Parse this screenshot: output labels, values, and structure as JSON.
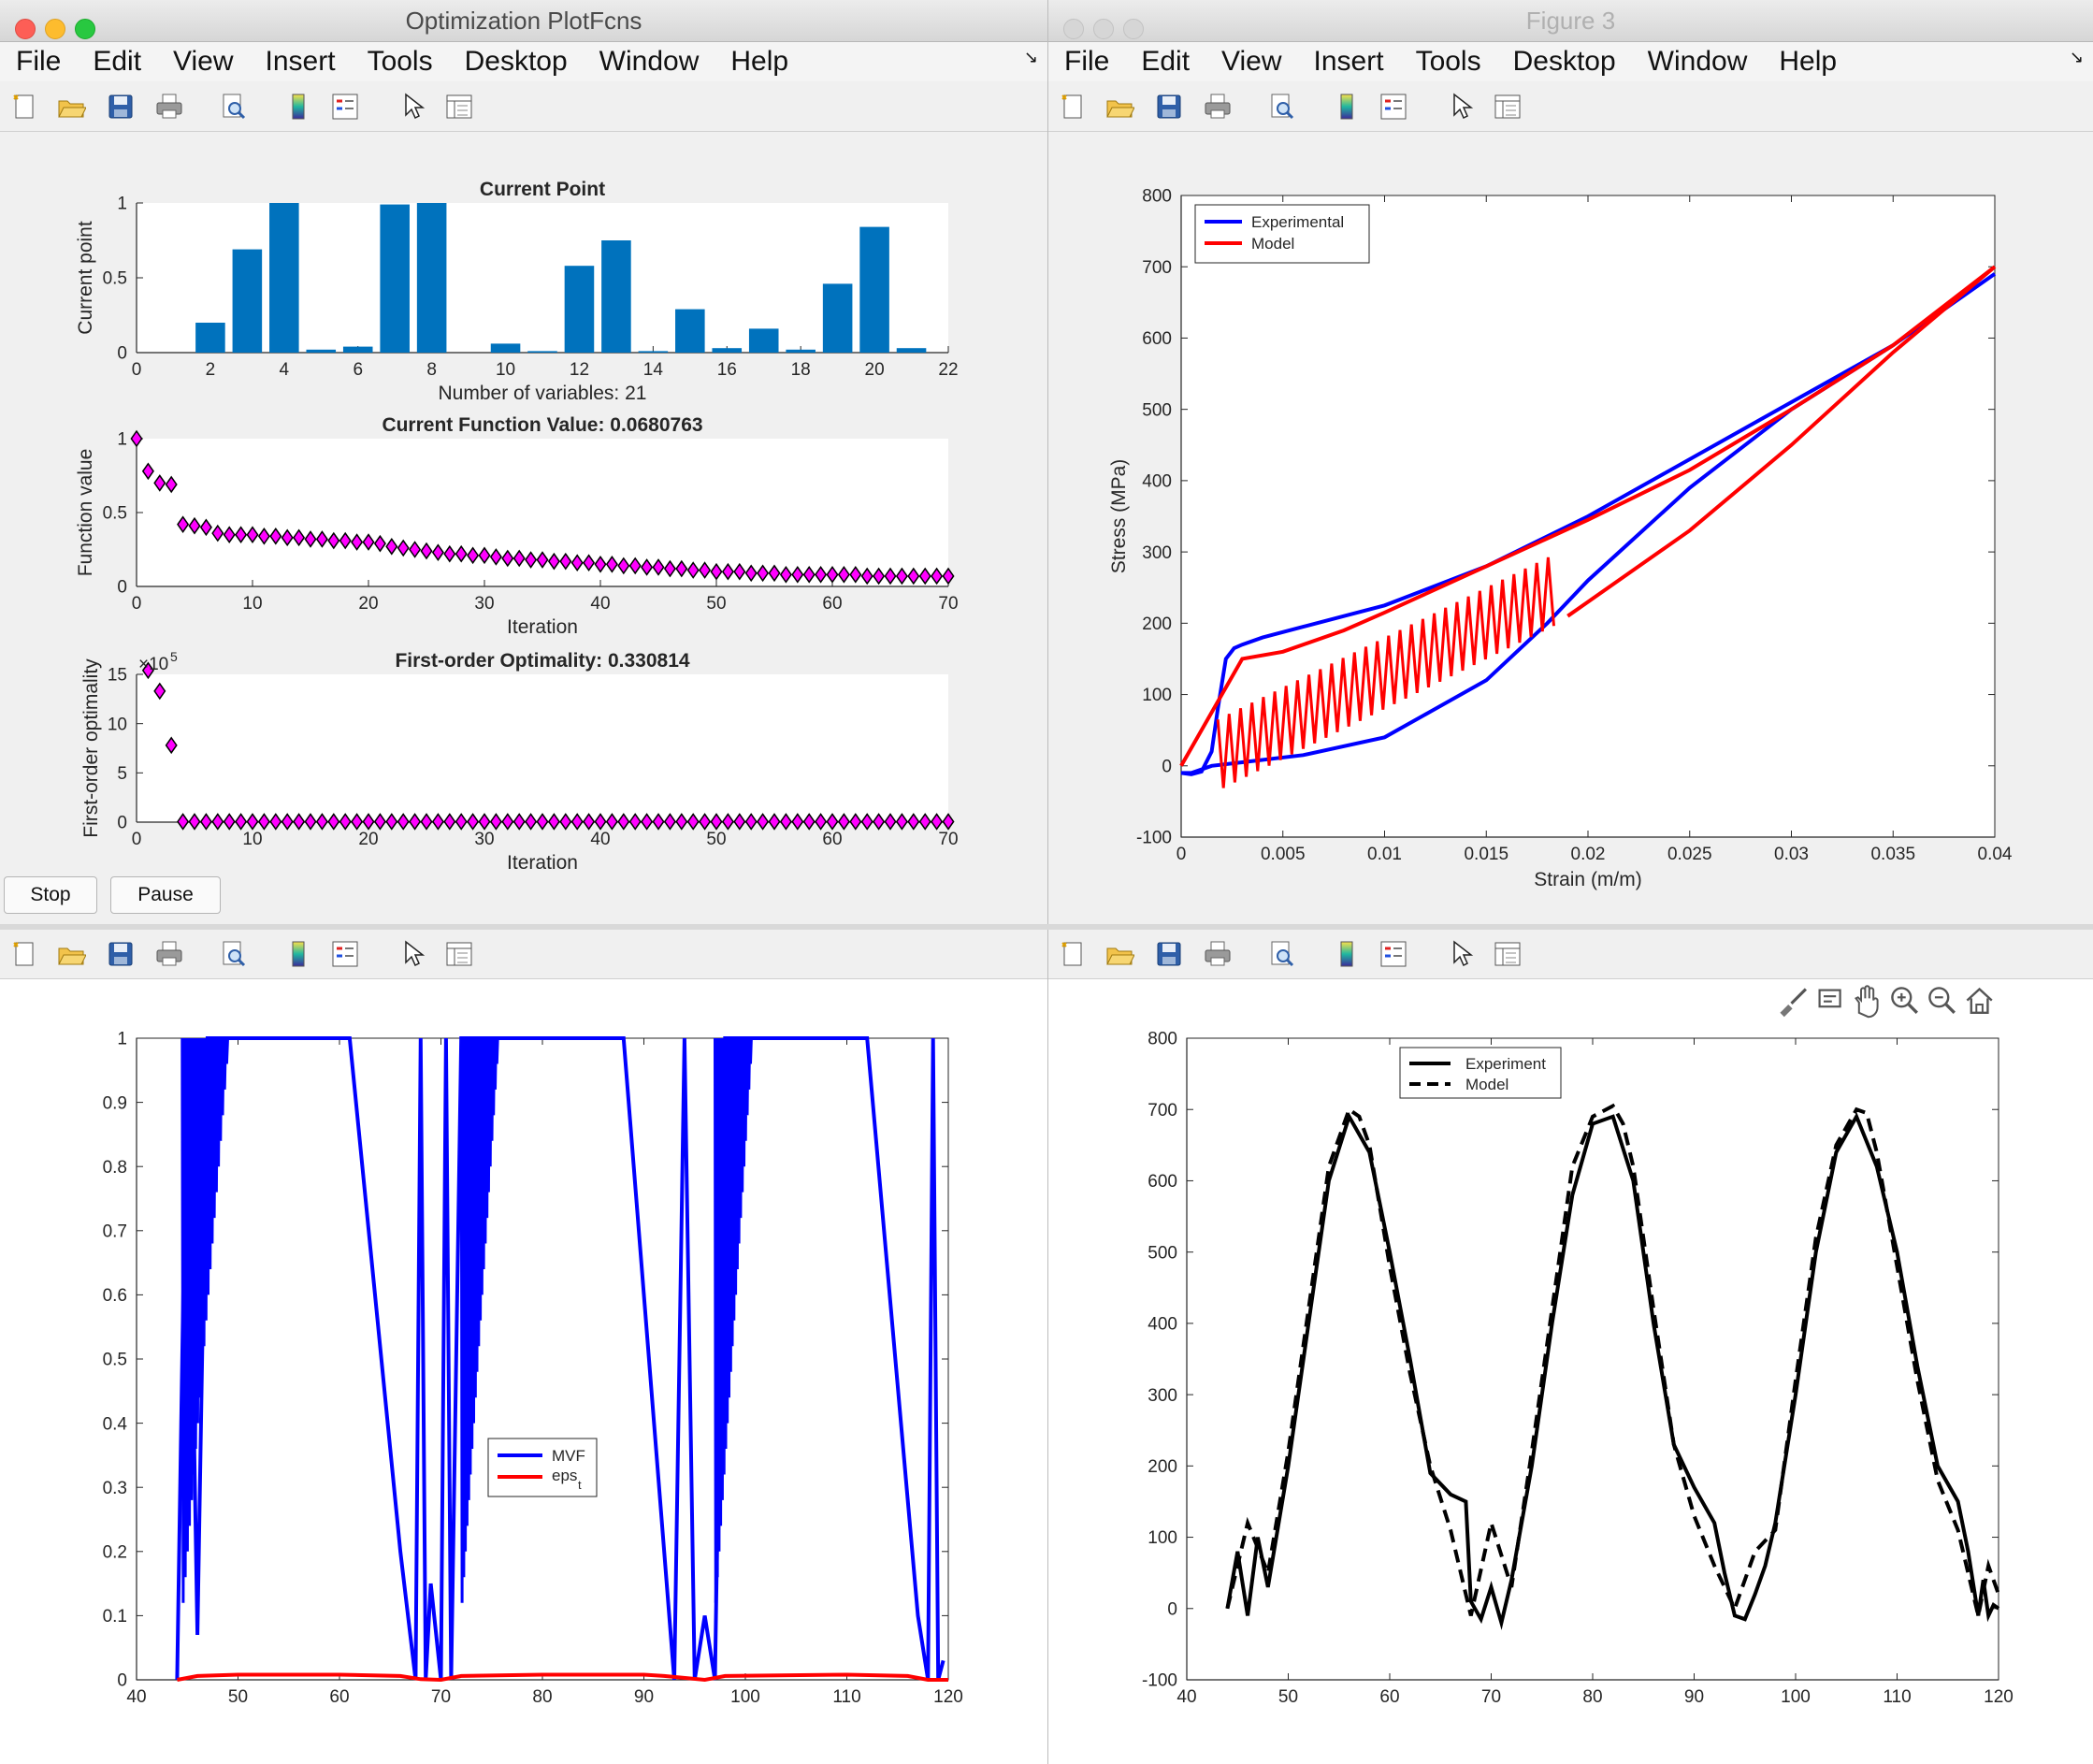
{
  "windows": {
    "top_left": {
      "title": "Optimization PlotFcns"
    },
    "top_right": {
      "title": "Figure 3"
    }
  },
  "menu": [
    "File",
    "Edit",
    "View",
    "Insert",
    "Tools",
    "Desktop",
    "Window",
    "Help"
  ],
  "toolbar_icons": [
    "new-figure-icon",
    "open-file-icon",
    "save-icon",
    "print-icon",
    "print-preview-icon",
    "colorbar-icon",
    "legend-icon",
    "edit-plot-arrow-icon",
    "property-inspector-icon"
  ],
  "axes_toolbar_icons": [
    "brush-icon",
    "data-tips-icon",
    "pan-hand-icon",
    "zoom-in-icon",
    "zoom-out-icon",
    "home-icon"
  ],
  "buttons": {
    "stop": "Stop",
    "pause": "Pause"
  },
  "colors": {
    "bar": "#0072BD",
    "marker": "#FF00FF",
    "experimental": "#0000FF",
    "model": "#FF0000"
  },
  "chart_data": [
    {
      "type": "bar",
      "title": "Current Point",
      "xlabel": "Number of variables: 21",
      "ylabel": "Current point",
      "xlim": [
        0,
        22
      ],
      "ylim": [
        0,
        1
      ],
      "xticks": [
        0,
        2,
        4,
        6,
        8,
        10,
        12,
        14,
        16,
        18,
        20,
        22
      ],
      "yticks": [
        0,
        0.5,
        1
      ],
      "categories": [
        1,
        2,
        3,
        4,
        5,
        6,
        7,
        8,
        9,
        10,
        11,
        12,
        13,
        14,
        15,
        16,
        17,
        18,
        19,
        20,
        21
      ],
      "values": [
        0,
        0.2,
        0.69,
        1.0,
        0.02,
        0.04,
        0.99,
        1.0,
        0,
        0.06,
        0.01,
        0.58,
        0.75,
        0.01,
        0.29,
        0.03,
        0.16,
        0.02,
        0.46,
        0.84,
        0.03
      ]
    },
    {
      "type": "scatter",
      "title": "Current Function Value: 0.0680763",
      "xlabel": "Iteration",
      "ylabel": "Function value",
      "xlim": [
        0,
        70
      ],
      "ylim": [
        0,
        1
      ],
      "xticks": [
        0,
        10,
        20,
        30,
        40,
        50,
        60,
        70
      ],
      "yticks": [
        0,
        0.5,
        1
      ],
      "x": [
        0,
        1,
        2,
        3,
        4,
        5,
        6,
        7,
        8,
        9,
        10,
        11,
        12,
        13,
        14,
        15,
        16,
        17,
        18,
        19,
        20,
        21,
        22,
        23,
        24,
        25,
        26,
        27,
        28,
        29,
        30,
        31,
        32,
        33,
        34,
        35,
        36,
        37,
        38,
        39,
        40,
        41,
        42,
        43,
        44,
        45,
        46,
        47,
        48,
        49,
        50,
        51,
        52,
        53,
        54,
        55,
        56,
        57,
        58,
        59,
        60,
        61,
        62,
        63,
        64,
        65,
        66,
        67,
        68,
        69,
        70
      ],
      "y": [
        1.0,
        0.78,
        0.7,
        0.69,
        0.42,
        0.41,
        0.4,
        0.36,
        0.35,
        0.35,
        0.35,
        0.34,
        0.34,
        0.33,
        0.33,
        0.32,
        0.32,
        0.31,
        0.31,
        0.3,
        0.3,
        0.29,
        0.27,
        0.26,
        0.25,
        0.24,
        0.23,
        0.22,
        0.22,
        0.21,
        0.21,
        0.2,
        0.19,
        0.19,
        0.18,
        0.18,
        0.17,
        0.17,
        0.16,
        0.16,
        0.15,
        0.15,
        0.14,
        0.14,
        0.13,
        0.13,
        0.12,
        0.12,
        0.11,
        0.11,
        0.1,
        0.1,
        0.1,
        0.09,
        0.09,
        0.09,
        0.08,
        0.08,
        0.08,
        0.08,
        0.08,
        0.08,
        0.08,
        0.07,
        0.07,
        0.07,
        0.07,
        0.07,
        0.07,
        0.07,
        0.07
      ]
    },
    {
      "type": "scatter",
      "title": "First-order Optimality: 0.330814",
      "xlabel": "Iteration",
      "ylabel": "First-order optimality",
      "exponent_label": "×10",
      "exponent_power": "5",
      "xlim": [
        0,
        70
      ],
      "ylim": [
        0,
        15
      ],
      "xticks": [
        0,
        10,
        20,
        30,
        40,
        50,
        60,
        70
      ],
      "yticks": [
        0,
        5,
        10,
        15
      ],
      "x": [
        1,
        2,
        3,
        4,
        5,
        6,
        7,
        8,
        9,
        10,
        11,
        12,
        13,
        14,
        15,
        16,
        17,
        18,
        19,
        20,
        21,
        22,
        23,
        24,
        25,
        26,
        27,
        28,
        29,
        30,
        31,
        32,
        33,
        34,
        35,
        36,
        37,
        38,
        39,
        40,
        41,
        42,
        43,
        44,
        45,
        46,
        47,
        48,
        49,
        50,
        51,
        52,
        53,
        54,
        55,
        56,
        57,
        58,
        59,
        60,
        61,
        62,
        63,
        64,
        65,
        66,
        67,
        68,
        69,
        70
      ],
      "y": [
        15.4,
        13.3,
        7.8,
        0.05,
        0.05,
        0.05,
        0.05,
        0.05,
        0.05,
        0.05,
        0.05,
        0.05,
        0.05,
        0.05,
        0.05,
        0.05,
        0.05,
        0.05,
        0.05,
        0.05,
        0.05,
        0.05,
        0.05,
        0.05,
        0.05,
        0.05,
        0.05,
        0.05,
        0.05,
        0.05,
        0.05,
        0.05,
        0.05,
        0.05,
        0.05,
        0.05,
        0.05,
        0.05,
        0.05,
        0.05,
        0.05,
        0.05,
        0.05,
        0.05,
        0.05,
        0.05,
        0.05,
        0.05,
        0.05,
        0.05,
        0.05,
        0.05,
        0.05,
        0.05,
        0.05,
        0.05,
        0.05,
        0.05,
        0.05,
        0.05,
        0.05,
        0.05,
        0.05,
        0.05,
        0.05,
        0.05,
        0.05,
        0.05,
        0.05,
        0.05
      ]
    },
    {
      "type": "line",
      "xlabel": "Strain (m/m)",
      "ylabel": "Stress (MPa)",
      "xlim": [
        0,
        0.04
      ],
      "ylim": [
        -100,
        800
      ],
      "xticks": [
        "0",
        "0.005",
        "0.01",
        "0.015",
        "0.02",
        "0.025",
        "0.03",
        "0.035",
        "0.04"
      ],
      "yticks": [
        -100,
        0,
        100,
        200,
        300,
        400,
        500,
        600,
        700,
        800
      ],
      "legend_position": "top-left",
      "series": [
        {
          "name": "Experimental",
          "color": "#0000FF",
          "x": [
            0,
            0.0005,
            0.001,
            0.0015,
            0.0018,
            0.0022,
            0.0026,
            0.003,
            0.004,
            0.006,
            0.008,
            0.01,
            0.015,
            0.02,
            0.025,
            0.03,
            0.035,
            0.04,
            0.035,
            0.03,
            0.025,
            0.02,
            0.018,
            0.015,
            0.01,
            0.006,
            0.003,
            0.0015,
            0.0005,
            0
          ],
          "y": [
            -10,
            -12,
            -8,
            20,
            80,
            150,
            165,
            170,
            180,
            195,
            210,
            225,
            280,
            350,
            430,
            510,
            590,
            690,
            590,
            500,
            390,
            260,
            200,
            120,
            40,
            15,
            5,
            0,
            -10,
            -10
          ]
        },
        {
          "name": "Model",
          "color": "#FF0000",
          "x": [
            0,
            0.003,
            0.005,
            0.008,
            0.01,
            0.015,
            0.02,
            0.025,
            0.03,
            0.035,
            0.04,
            0.035,
            0.03,
            0.025,
            0.02,
            0.019
          ],
          "y": [
            0,
            150,
            160,
            190,
            215,
            280,
            345,
            415,
            500,
            590,
            700,
            580,
            450,
            330,
            230,
            210
          ]
        }
      ]
    },
    {
      "type": "line",
      "xlim": [
        40,
        120
      ],
      "ylim": [
        0,
        1
      ],
      "xticks": [
        40,
        50,
        60,
        70,
        80,
        90,
        100,
        110,
        120
      ],
      "yticks": [
        "0",
        "0.1",
        "0.2",
        "0.3",
        "0.4",
        "0.5",
        "0.6",
        "0.7",
        "0.8",
        "0.9",
        "1"
      ],
      "legend_position": "center-right",
      "series": [
        {
          "name": "MVF",
          "color": "#0000FF",
          "x": [
            44,
            45,
            46,
            47,
            50,
            61,
            66,
            67.5,
            68,
            68.5,
            69,
            70,
            70.5,
            71,
            72,
            88,
            92,
            93,
            94,
            95,
            96,
            97,
            98,
            99,
            100,
            112,
            117,
            118,
            118.5,
            119,
            119.5
          ],
          "y": [
            0,
            1,
            0.07,
            1,
            1,
            1,
            0.2,
            0,
            1,
            0,
            0.15,
            0,
            1,
            0,
            1,
            1,
            0.2,
            0,
            1,
            0,
            0.1,
            0,
            1,
            1,
            1,
            1,
            0.1,
            0,
            1,
            0,
            0.03
          ]
        },
        {
          "name": "eps_t",
          "name_main": "eps",
          "name_sub": "t",
          "color": "#FF0000",
          "x": [
            44,
            46,
            50,
            60,
            66,
            68,
            70,
            72,
            80,
            90,
            92,
            96,
            98,
            110,
            116,
            118,
            120
          ],
          "y": [
            0,
            0.006,
            0.008,
            0.008,
            0.006,
            0.001,
            0,
            0.006,
            0.008,
            0.008,
            0.006,
            0,
            0.006,
            0.008,
            0.006,
            0,
            0
          ]
        }
      ]
    },
    {
      "type": "line",
      "xlim": [
        40,
        120
      ],
      "ylim": [
        -100,
        800
      ],
      "xticks": [
        40,
        50,
        60,
        70,
        80,
        90,
        100,
        110,
        120
      ],
      "yticks": [
        -100,
        0,
        100,
        200,
        300,
        400,
        500,
        600,
        700,
        800
      ],
      "legend_position": "top-left",
      "series": [
        {
          "name": "Experiment",
          "style": "solid",
          "x": [
            44,
            45,
            46,
            47,
            48,
            50,
            52,
            54,
            56,
            58,
            60,
            62,
            64,
            66,
            67.5,
            68,
            69,
            70,
            71,
            72,
            74,
            76,
            78,
            80,
            82,
            84,
            86,
            88,
            90,
            92,
            93,
            94,
            95,
            96,
            97,
            98,
            100,
            102,
            104,
            106,
            108,
            110,
            112,
            114,
            116,
            117,
            118,
            118.5,
            119,
            119.5,
            120
          ],
          "y": [
            0,
            80,
            -10,
            100,
            30,
            200,
            400,
            600,
            690,
            640,
            500,
            350,
            190,
            160,
            150,
            10,
            -15,
            30,
            -20,
            40,
            200,
            400,
            580,
            680,
            690,
            600,
            400,
            230,
            170,
            120,
            50,
            -10,
            -15,
            20,
            60,
            120,
            300,
            500,
            640,
            690,
            620,
            500,
            340,
            200,
            150,
            80,
            -10,
            40,
            -10,
            5,
            0
          ]
        },
        {
          "name": "Model",
          "style": "dashed",
          "x": [
            44,
            46,
            48,
            50,
            52,
            54,
            56,
            57,
            58,
            60,
            62,
            64,
            66,
            68,
            70,
            72,
            74,
            76,
            78,
            80,
            82,
            83,
            84,
            86,
            88,
            90,
            92,
            94,
            96,
            98,
            100,
            102,
            104,
            106,
            107,
            108,
            110,
            112,
            114,
            116,
            118,
            119,
            120
          ],
          "y": [
            0,
            120,
            50,
            220,
            420,
            620,
            700,
            690,
            650,
            480,
            330,
            200,
            110,
            -10,
            120,
            30,
            220,
            420,
            620,
            690,
            705,
            680,
            620,
            420,
            230,
            130,
            60,
            0,
            80,
            110,
            320,
            520,
            650,
            700,
            695,
            640,
            480,
            320,
            180,
            110,
            -10,
            60,
            20
          ]
        }
      ]
    }
  ]
}
